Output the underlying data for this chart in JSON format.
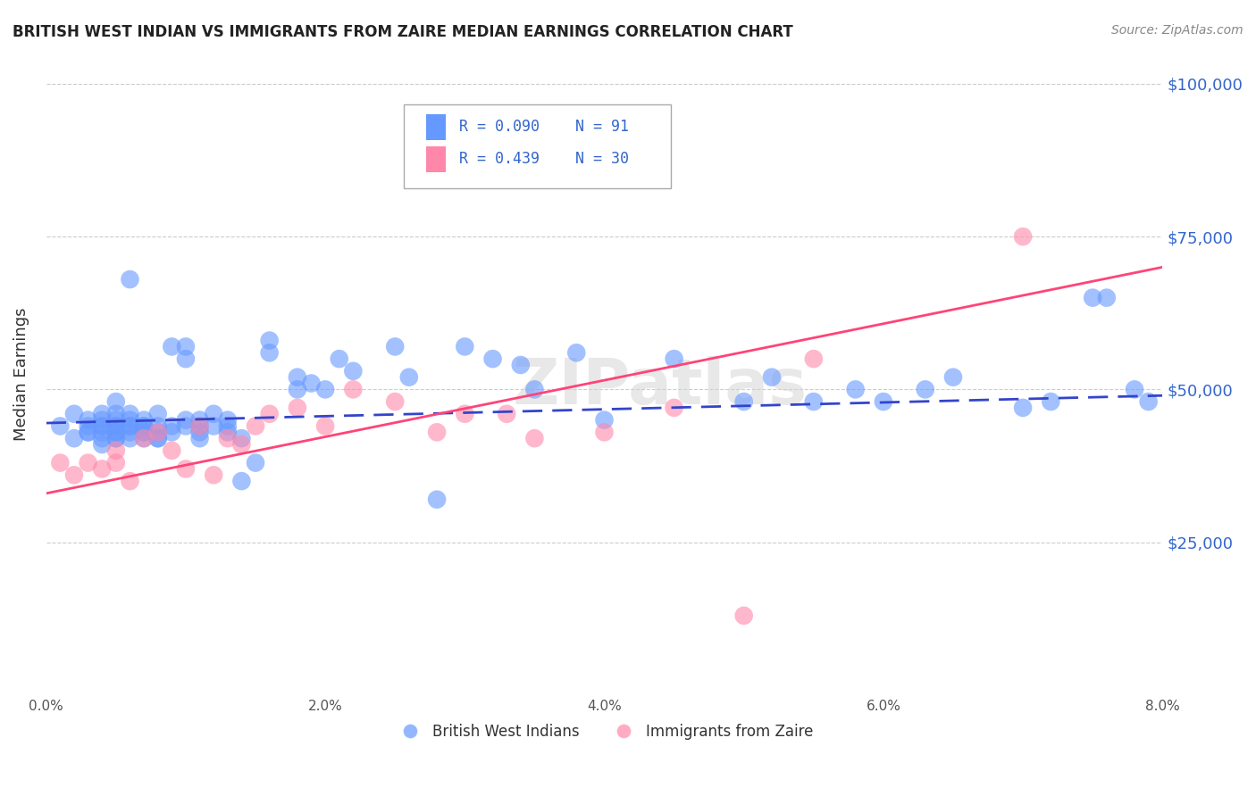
{
  "title": "BRITISH WEST INDIAN VS IMMIGRANTS FROM ZAIRE MEDIAN EARNINGS CORRELATION CHART",
  "source_text": "Source: ZipAtlas.com",
  "ylabel": "Median Earnings",
  "xlabel": "",
  "xlim": [
    0.0,
    0.08
  ],
  "ylim": [
    0,
    105000
  ],
  "yticks": [
    25000,
    50000,
    75000,
    100000
  ],
  "ytick_labels": [
    "$25,000",
    "$50,000",
    "$75,000",
    "$100,000"
  ],
  "xtick_labels": [
    "0.0%",
    "2.0%",
    "4.0%",
    "6.0%",
    "8.0%"
  ],
  "xticks": [
    0.0,
    0.02,
    0.04,
    0.06,
    0.08
  ],
  "blue_color": "#6699ff",
  "pink_color": "#ff88aa",
  "trend_blue": "#3344cc",
  "trend_pink": "#ff4477",
  "label_color": "#3366cc",
  "grid_color": "#cccccc",
  "background": "#ffffff",
  "watermark": "ZIPatlas",
  "legend_R_blue": "R = 0.090",
  "legend_N_blue": "N = 91",
  "legend_R_pink": "R = 0.439",
  "legend_N_pink": "N = 30",
  "series1_label": "British West Indians",
  "series2_label": "Immigrants from Zaire",
  "blue_x": [
    0.001,
    0.002,
    0.002,
    0.003,
    0.003,
    0.003,
    0.003,
    0.004,
    0.004,
    0.004,
    0.004,
    0.004,
    0.004,
    0.004,
    0.005,
    0.005,
    0.005,
    0.005,
    0.005,
    0.005,
    0.005,
    0.005,
    0.005,
    0.006,
    0.006,
    0.006,
    0.006,
    0.006,
    0.006,
    0.006,
    0.007,
    0.007,
    0.007,
    0.007,
    0.007,
    0.007,
    0.008,
    0.008,
    0.008,
    0.008,
    0.008,
    0.009,
    0.009,
    0.009,
    0.01,
    0.01,
    0.01,
    0.01,
    0.011,
    0.011,
    0.011,
    0.011,
    0.012,
    0.012,
    0.013,
    0.013,
    0.013,
    0.014,
    0.014,
    0.015,
    0.016,
    0.016,
    0.018,
    0.018,
    0.019,
    0.02,
    0.021,
    0.022,
    0.025,
    0.026,
    0.028,
    0.03,
    0.032,
    0.034,
    0.035,
    0.038,
    0.04,
    0.045,
    0.05,
    0.052,
    0.055,
    0.058,
    0.06,
    0.063,
    0.065,
    0.07,
    0.072,
    0.075,
    0.076,
    0.078,
    0.079
  ],
  "blue_y": [
    44000,
    42000,
    46000,
    43000,
    45000,
    44000,
    43000,
    42000,
    44000,
    45000,
    43000,
    41000,
    44000,
    46000,
    42000,
    44000,
    45000,
    43000,
    42000,
    46000,
    48000,
    44000,
    43000,
    68000,
    42000,
    44000,
    43000,
    45000,
    44000,
    46000,
    42000,
    44000,
    43000,
    45000,
    44000,
    43000,
    42000,
    46000,
    44000,
    43000,
    42000,
    44000,
    57000,
    43000,
    45000,
    44000,
    55000,
    57000,
    43000,
    44000,
    45000,
    42000,
    46000,
    44000,
    45000,
    43000,
    44000,
    35000,
    42000,
    38000,
    58000,
    56000,
    50000,
    52000,
    51000,
    50000,
    55000,
    53000,
    57000,
    52000,
    32000,
    57000,
    55000,
    54000,
    50000,
    56000,
    45000,
    55000,
    48000,
    52000,
    48000,
    50000,
    48000,
    50000,
    52000,
    47000,
    48000,
    65000,
    65000,
    50000,
    48000
  ],
  "pink_x": [
    0.001,
    0.002,
    0.003,
    0.004,
    0.005,
    0.005,
    0.006,
    0.007,
    0.008,
    0.009,
    0.01,
    0.011,
    0.012,
    0.013,
    0.014,
    0.015,
    0.016,
    0.018,
    0.02,
    0.022,
    0.025,
    0.028,
    0.03,
    0.033,
    0.035,
    0.04,
    0.045,
    0.05,
    0.055,
    0.07
  ],
  "pink_y": [
    38000,
    36000,
    38000,
    37000,
    38000,
    40000,
    35000,
    42000,
    43000,
    40000,
    37000,
    44000,
    36000,
    42000,
    41000,
    44000,
    46000,
    47000,
    44000,
    50000,
    48000,
    43000,
    46000,
    46000,
    42000,
    43000,
    47000,
    13000,
    55000,
    75000
  ],
  "blue_trend_x": [
    0.0,
    0.08
  ],
  "blue_trend_y": [
    44500,
    49000
  ],
  "pink_trend_x": [
    0.0,
    0.08
  ],
  "pink_trend_y": [
    33000,
    70000
  ]
}
